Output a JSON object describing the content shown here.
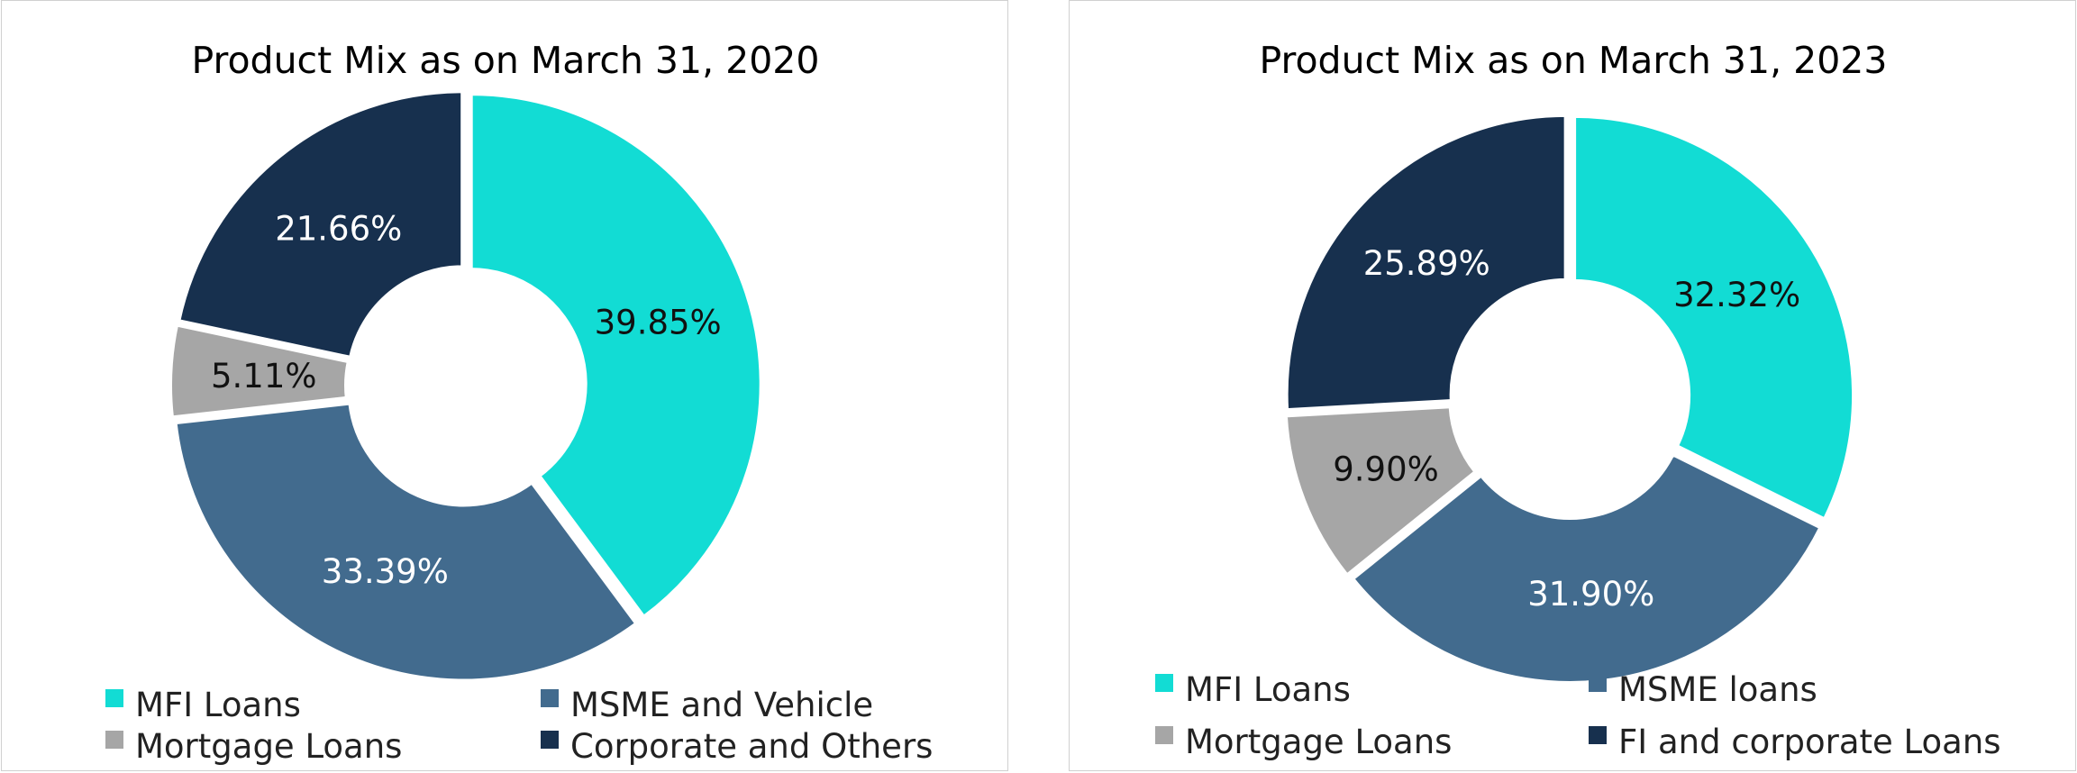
{
  "chart_data": [
    {
      "type": "pie",
      "title": "Product Mix as on March 31, 2020",
      "slices": [
        {
          "label": "MFI Loans",
          "value": 39.85,
          "display": "39.85%",
          "color": "#12dcd4",
          "label_color": "#111111"
        },
        {
          "label": "MSME and Vehicle",
          "value": 33.39,
          "display": "33.39%",
          "color": "#426b8e",
          "label_color": "#ffffff"
        },
        {
          "label": "Mortgage Loans",
          "value": 5.11,
          "display": "5.11%",
          "color": "#a6a6a6",
          "label_color": "#111111"
        },
        {
          "label": "Corporate and Others",
          "value": 21.66,
          "display": "21.66%",
          "color": "#17304e",
          "label_color": "#ffffff"
        }
      ],
      "legend": "bottom"
    },
    {
      "type": "pie",
      "title": "Product Mix as on March 31, 2023",
      "slices": [
        {
          "label": "MFI Loans",
          "value": 32.32,
          "display": "32.32%",
          "color": "#12dcd4",
          "label_color": "#111111"
        },
        {
          "label": "MSME loans",
          "value": 31.9,
          "display": "31.90%",
          "color": "#426b8e",
          "label_color": "#ffffff"
        },
        {
          "label": "Mortgage Loans",
          "value": 9.9,
          "display": "9.90%",
          "color": "#a6a6a6",
          "label_color": "#111111"
        },
        {
          "label": "FI and corporate Loans",
          "value": 25.89,
          "display": "25.89%",
          "color": "#17304e",
          "label_color": "#ffffff"
        }
      ],
      "legend": "bottom"
    }
  ]
}
